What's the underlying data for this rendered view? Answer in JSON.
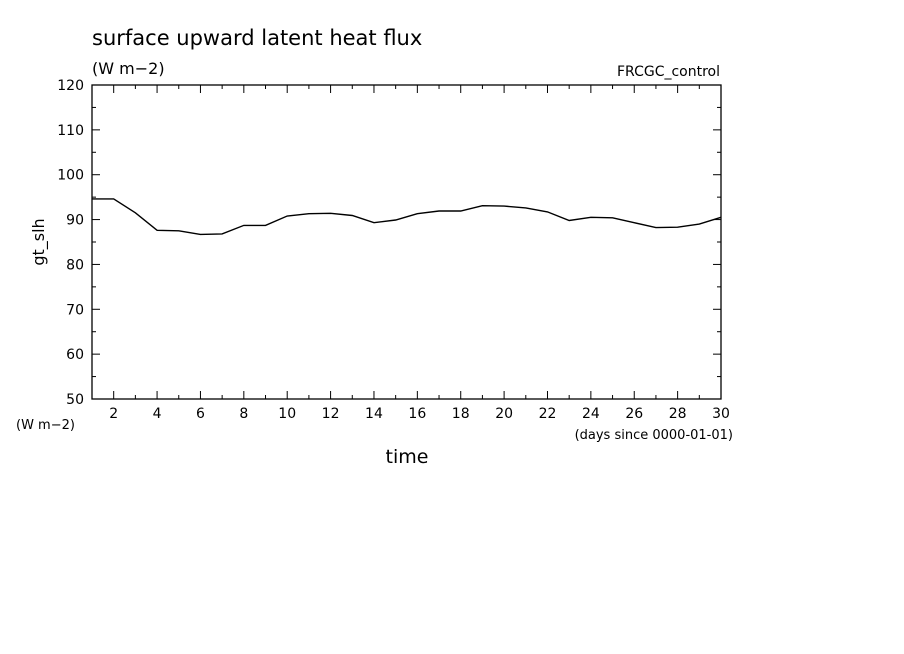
{
  "chart_data": {
    "type": "line",
    "title": "surface upward latent heat flux",
    "subtitle": "(W m−2)",
    "run_label": "FRCGC_control",
    "ylabel": "gt_slh",
    "yunit": "(W m−2)",
    "xlabel": "time",
    "xunit": "(days since 0000-01-01)",
    "xlim": [
      1,
      30
    ],
    "ylim": [
      50,
      120
    ],
    "x_ticks": [
      2,
      4,
      6,
      8,
      10,
      12,
      14,
      16,
      18,
      20,
      22,
      24,
      26,
      28,
      30
    ],
    "y_ticks": [
      50,
      60,
      70,
      80,
      90,
      100,
      110,
      120
    ],
    "grid": false,
    "series": [
      {
        "color": "#000000",
        "x": [
          1,
          2,
          3,
          4,
          5,
          6,
          7,
          8,
          9,
          10,
          11,
          12,
          13,
          14,
          15,
          16,
          17,
          18,
          19,
          20,
          21,
          22,
          23,
          24,
          25,
          26,
          27,
          28,
          29,
          30
        ],
        "y": [
          94.6,
          94.6,
          91.5,
          87.6,
          87.5,
          86.7,
          86.8,
          88.7,
          88.7,
          90.8,
          91.3,
          91.4,
          90.9,
          89.3,
          89.9,
          91.3,
          91.9,
          91.9,
          93.1,
          93.0,
          92.6,
          91.7,
          89.8,
          90.5,
          90.4,
          89.3,
          88.2,
          88.3,
          89.0,
          90.5
        ]
      }
    ]
  }
}
